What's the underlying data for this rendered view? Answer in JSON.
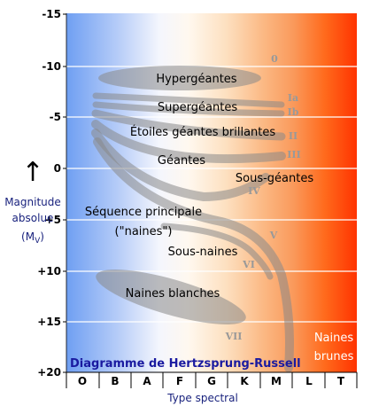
{
  "y_axis": {
    "ticks": [
      "-15",
      "-10",
      "-5",
      "0",
      "+5",
      "+10",
      "+15",
      "+20"
    ],
    "label_line1": "Magnitude",
    "label_line2": "absolue",
    "label_line3": "(M",
    "label_line3_sub": "V",
    "label_line3_end": ")",
    "arrow": "↑"
  },
  "x_axis": {
    "spectral_classes": [
      "O",
      "B",
      "A",
      "F",
      "G",
      "K",
      "M",
      "L",
      "T"
    ],
    "label": "Type spectral"
  },
  "title": "Diagramme de Hertzsprung-Russell",
  "regions": {
    "hypergiants": "Hypergéantes",
    "supergiants": "Supergéantes",
    "bright_giants": "Étoiles géantes brillantes",
    "giants": "Géantes",
    "subgiants": "Sous-géantes",
    "main_sequence_1": "Séquence principale",
    "main_sequence_2": "(\"naines\")",
    "subdwarfs": "Sous-naines",
    "white_dwarfs": "Naines blanches",
    "brown_dwarfs_1": "Naines",
    "brown_dwarfs_2": "brunes"
  },
  "luminosity_classes": {
    "c0": "0",
    "ia": "Ia",
    "ib": "Ib",
    "ii": "II",
    "iii": "III",
    "iv": "IV",
    "v": "V",
    "vi": "VI",
    "vii": "VII"
  },
  "colors": {
    "hot_blue": "#6f9ff2",
    "cool_red": "#ff3300",
    "band_fill": "#888888",
    "title_color": "#1a1aa0"
  }
}
